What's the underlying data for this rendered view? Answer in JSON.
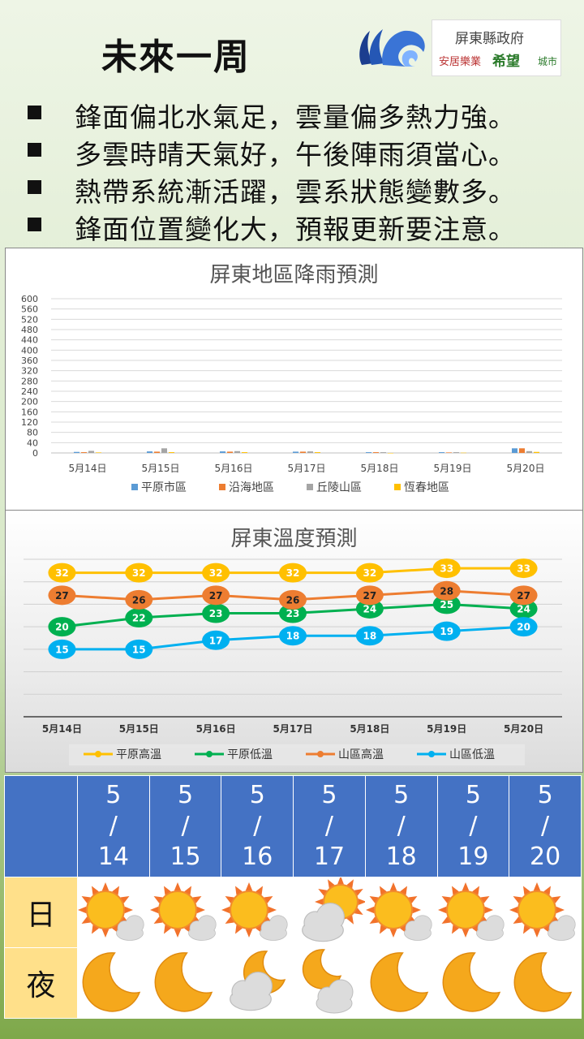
{
  "header": {
    "title": "未來一周",
    "gov_logo": {
      "line1": "屏東縣政府",
      "line2": "安居樂業",
      "line3": "希望",
      "line4": "城市"
    }
  },
  "bullets": [
    "鋒面偏北水氣足，雲量偏多熱力強。",
    "多雲時晴天氣好，午後陣雨須當心。",
    "熱帶系統漸活躍，雲系狀態變數多。",
    "鋒面位置變化大，預報更新要注意。"
  ],
  "chart_data": [
    {
      "type": "bar",
      "title": "屏東地區降雨預測",
      "categories": [
        "5月14日",
        "5月15日",
        "5月16日",
        "5月17日",
        "5月18日",
        "5月19日",
        "5月20日"
      ],
      "series": [
        {
          "name": "平原市區",
          "color": "#5b9bd5",
          "values": [
            4,
            6,
            6,
            5,
            3,
            3,
            18
          ]
        },
        {
          "name": "沿海地區",
          "color": "#ed7d31",
          "values": [
            3,
            5,
            5,
            5,
            3,
            2,
            18
          ]
        },
        {
          "name": "丘陵山區",
          "color": "#a5a5a5",
          "values": [
            8,
            18,
            7,
            6,
            3,
            3,
            7
          ]
        },
        {
          "name": "恆春地區",
          "color": "#ffc000",
          "values": [
            2,
            3,
            3,
            3,
            0,
            1,
            4
          ]
        }
      ],
      "ylim": [
        0,
        600
      ],
      "yticks": [
        0,
        40,
        80,
        120,
        160,
        200,
        240,
        280,
        320,
        360,
        400,
        440,
        480,
        520,
        560,
        600
      ],
      "grid": true,
      "legend": "bottom"
    },
    {
      "type": "line",
      "title": "屏東溫度預測",
      "categories": [
        "5月14日",
        "5月15日",
        "5月16日",
        "5月17日",
        "5月18日",
        "5月19日",
        "5月20日"
      ],
      "series": [
        {
          "name": "平原高溫",
          "color": "#ffc000",
          "values": [
            32,
            32,
            32,
            32,
            32,
            33,
            33
          ]
        },
        {
          "name": "平原低溫",
          "color": "#00b050",
          "values": [
            20,
            22,
            23,
            23,
            24,
            25,
            24
          ]
        },
        {
          "name": "山區高溫",
          "color": "#ed7d31",
          "values": [
            27,
            26,
            27,
            26,
            27,
            28,
            27
          ]
        },
        {
          "name": "山區低溫",
          "color": "#00b0f0",
          "values": [
            15,
            15,
            17,
            18,
            18,
            19,
            20
          ]
        }
      ],
      "ylim": [
        0,
        35
      ],
      "grid": true,
      "data_labels": true,
      "legend": "bottom"
    }
  ],
  "forecast": {
    "dates": [
      {
        "month": "5",
        "sep": "/",
        "day": "14"
      },
      {
        "month": "5",
        "sep": "/",
        "day": "15"
      },
      {
        "month": "5",
        "sep": "/",
        "day": "16"
      },
      {
        "month": "5",
        "sep": "/",
        "day": "17"
      },
      {
        "month": "5",
        "sep": "/",
        "day": "18"
      },
      {
        "month": "5",
        "sep": "/",
        "day": "19"
      },
      {
        "month": "5",
        "sep": "/",
        "day": "20"
      }
    ],
    "day_label": "日",
    "night_label": "夜",
    "day_icons": [
      "sun-cloud-icon",
      "sun-cloud-icon",
      "sun-cloud-icon",
      "cloud-sun-icon",
      "sun-cloud-icon",
      "sun-cloud-icon",
      "sun-cloud-icon"
    ],
    "night_icons": [
      "moon-icon",
      "moon-icon",
      "cloud-moon-icon",
      "moon-cloud-icon",
      "moon-icon",
      "moon-icon",
      "moon-icon"
    ]
  }
}
